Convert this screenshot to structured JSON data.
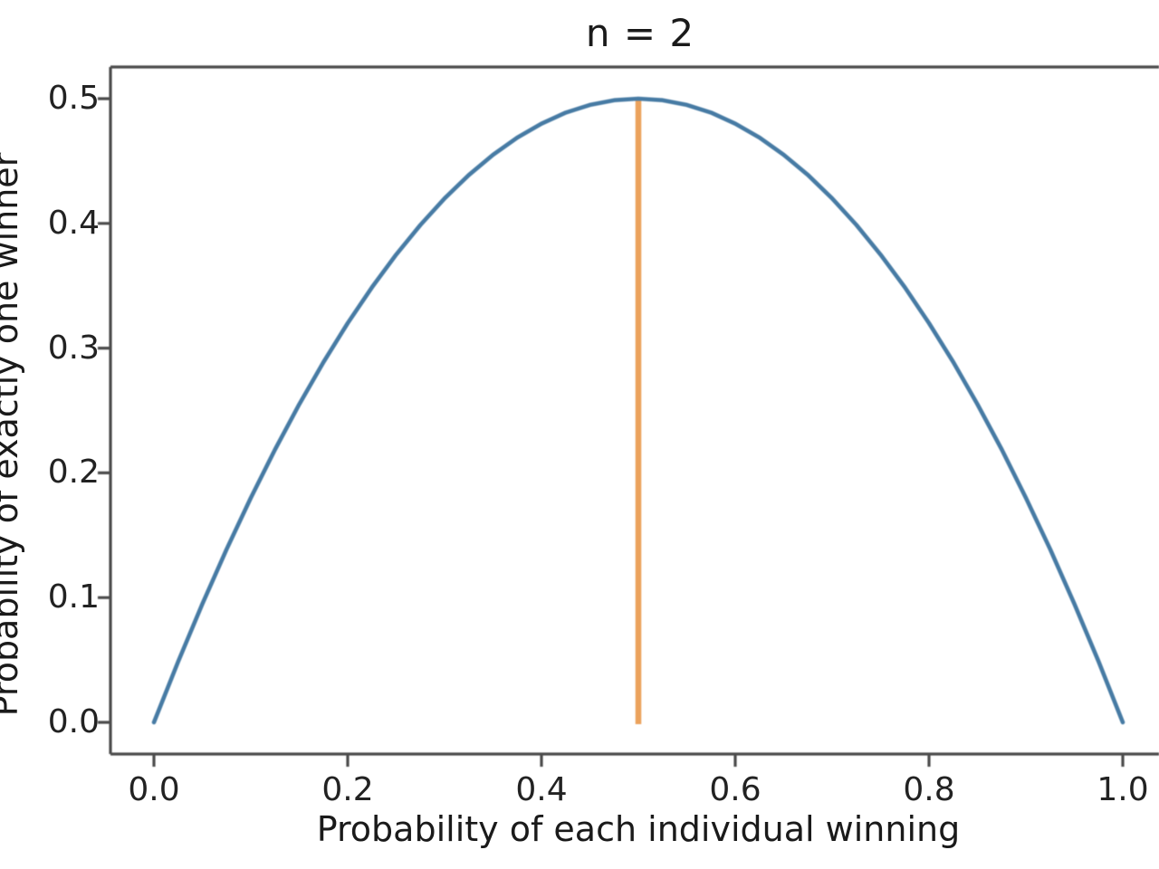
{
  "chart_data": {
    "type": "line",
    "title": "n = 2",
    "xlabel": "Probability of each individual winning",
    "ylabel": "Probability of exactly one winner",
    "xlim": [
      -0.05,
      1.05
    ],
    "ylim": [
      -0.025,
      0.525
    ],
    "xticks": [
      0.0,
      0.2,
      0.4,
      0.6,
      0.8,
      1.0
    ],
    "yticks": [
      0.0,
      0.1,
      0.2,
      0.3,
      0.4,
      0.5
    ],
    "grid": false,
    "legend": null,
    "colors": {
      "curve": "#477ba4",
      "vline": "#eba25c",
      "axis": "#4c4c4c",
      "text": "#1a1a1a"
    },
    "series": [
      {
        "name": "probability-of-exactly-one-winner",
        "color": "#477ba4",
        "x": [
          0,
          0.025,
          0.05,
          0.075,
          0.1,
          0.125,
          0.15,
          0.175,
          0.2,
          0.225,
          0.25,
          0.275,
          0.3,
          0.325,
          0.35,
          0.375,
          0.4,
          0.425,
          0.45,
          0.475,
          0.5,
          0.525,
          0.55,
          0.575,
          0.6,
          0.625,
          0.65,
          0.675,
          0.7,
          0.725,
          0.75,
          0.775,
          0.8,
          0.825,
          0.85,
          0.875,
          0.9,
          0.925,
          0.95,
          0.975,
          1.0
        ],
        "y": [
          0,
          0.0488,
          0.095,
          0.1388,
          0.18,
          0.2188,
          0.255,
          0.2888,
          0.32,
          0.3488,
          0.375,
          0.3988,
          0.42,
          0.4388,
          0.455,
          0.4688,
          0.48,
          0.4888,
          0.495,
          0.4988,
          0.5,
          0.4988,
          0.495,
          0.4888,
          0.48,
          0.4688,
          0.455,
          0.4388,
          0.42,
          0.3988,
          0.375,
          0.3488,
          0.32,
          0.2888,
          0.255,
          0.2188,
          0.18,
          0.1388,
          0.095,
          0.0488,
          0
        ]
      }
    ],
    "annotations": [
      {
        "type": "vline",
        "x": 0.5,
        "y_from": 0.0,
        "y_to": 0.5,
        "color": "#eba25c"
      }
    ]
  }
}
